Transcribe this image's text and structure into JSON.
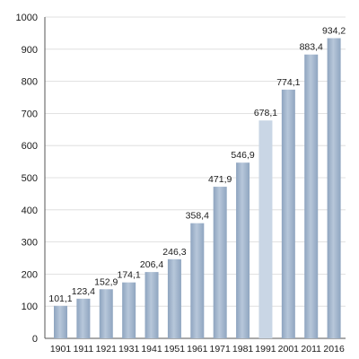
{
  "chart_data": {
    "type": "bar",
    "title": "",
    "xlabel": "",
    "ylabel": "",
    "categories": [
      "1901",
      "1911",
      "1921",
      "1931",
      "1941",
      "1951",
      "1961",
      "1971",
      "1981",
      "1991",
      "2001",
      "2011",
      "2016"
    ],
    "values": [
      101.1,
      123.4,
      152.9,
      174.1,
      206.4,
      246.3,
      358.4,
      471.9,
      546.9,
      678.1,
      774.1,
      883.4,
      934.2
    ],
    "data_labels": [
      "101,1",
      "123,4",
      "152,9",
      "174,1",
      "206,4",
      "246,3",
      "358,4",
      "471,9",
      "546,9",
      "678,1",
      "774,1",
      "883,4",
      "934,2"
    ],
    "ylim": [
      0,
      1000
    ],
    "yticks": [
      0,
      100,
      200,
      300,
      400,
      500,
      600,
      700,
      800,
      900,
      1000
    ],
    "ytick_labels": [
      "0",
      "100",
      "200",
      "300",
      "400",
      "500",
      "600",
      "700",
      "800",
      "900",
      "1000"
    ],
    "grid": true,
    "legend": "none",
    "colors": {
      "bar": "#9fb3cb",
      "bar_highlight": "#c9d6e5",
      "grid": "#d9d9d9",
      "axis": "#555555",
      "text": "#1a1a1a"
    }
  }
}
